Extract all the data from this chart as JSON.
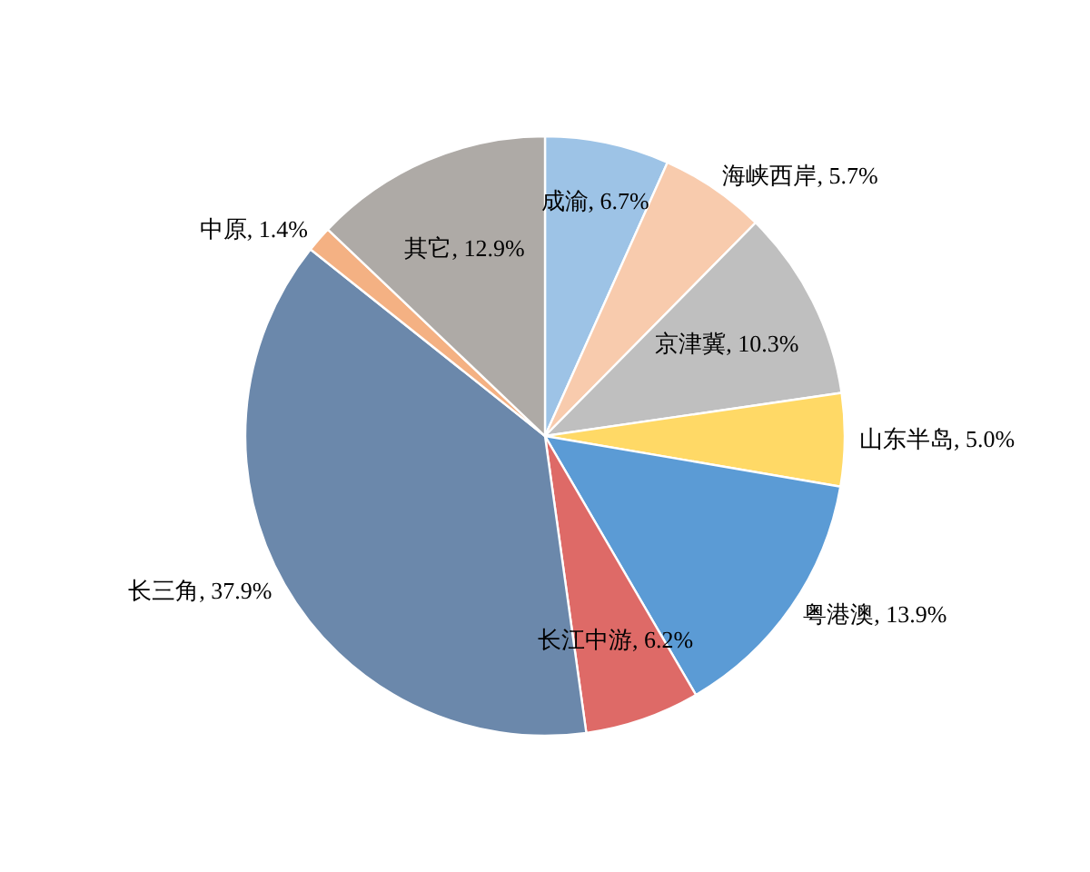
{
  "chart_data": {
    "type": "pie",
    "categories": [
      "成渝",
      "海峡西岸",
      "京津冀",
      "山东半岛",
      "粤港澳",
      "长江中游",
      "长三角",
      "中原",
      "其它"
    ],
    "values": [
      6.7,
      5.7,
      10.3,
      5.0,
      13.9,
      6.2,
      37.9,
      1.4,
      12.9
    ],
    "colors": [
      "#9dc3e6",
      "#f8cbad",
      "#bfbfbf",
      "#ffd966",
      "#5b9bd5",
      "#de6a67",
      "#6b88ab",
      "#f4b183",
      "#aeaaa6"
    ],
    "value_labels": [
      "6.7%",
      "5.7%",
      "10.3%",
      "5.0%",
      "13.9%",
      "6.2%",
      "37.9%",
      "1.4%",
      "12.9%"
    ]
  }
}
